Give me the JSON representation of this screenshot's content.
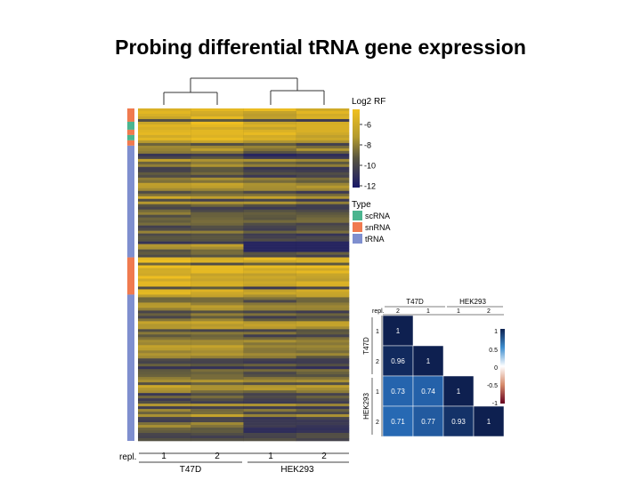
{
  "title": "Probing differential tRNA gene expression",
  "heatmap": {
    "dendrogram_label": "",
    "columns": [
      {
        "group": "T47D",
        "repl": "1"
      },
      {
        "group": "T47D",
        "repl": "2"
      },
      {
        "group": "HEK293",
        "repl": "1"
      },
      {
        "group": "HEK293",
        "repl": "2"
      }
    ],
    "repl_label": "repl.",
    "groups": [
      "T47D",
      "HEK293"
    ],
    "colorbar": {
      "title": "Log2 RF",
      "ticks": [
        "-6",
        "-8",
        "-10",
        "-12"
      ],
      "colors": [
        "#e8b821",
        "#6b6440",
        "#1a1a6b"
      ]
    },
    "type_legend": {
      "title": "Type",
      "items": [
        {
          "label": "scRNA",
          "color": "#4bb58f"
        },
        {
          "label": "snRNA",
          "color": "#f07a4f"
        },
        {
          "label": "tRNA",
          "color": "#7f8fcf"
        }
      ]
    }
  },
  "correlation": {
    "repl_label": "repl.",
    "groups": [
      "T47D",
      "HEK293"
    ],
    "labels": [
      "2",
      "1",
      "1",
      "2"
    ],
    "row_labels": [
      "1",
      "2",
      "1",
      "2"
    ],
    "matrix": [
      [
        "1"
      ],
      [
        "0.96",
        "1"
      ],
      [
        "0.73",
        "0.74",
        "1"
      ],
      [
        "0.71",
        "0.77",
        "0.93",
        "1"
      ]
    ],
    "matrix_values": [
      [
        1
      ],
      [
        0.96,
        1
      ],
      [
        0.73,
        0.74,
        1
      ],
      [
        0.71,
        0.77,
        0.93,
        1
      ]
    ],
    "legend_ticks": [
      "1",
      "0.5",
      "0",
      "-0.5",
      "-1"
    ],
    "colors": {
      "high": "#0d2150",
      "mid": "#ffffff",
      "low": "#67001f",
      "mid_high": "#2a6fc0"
    }
  }
}
